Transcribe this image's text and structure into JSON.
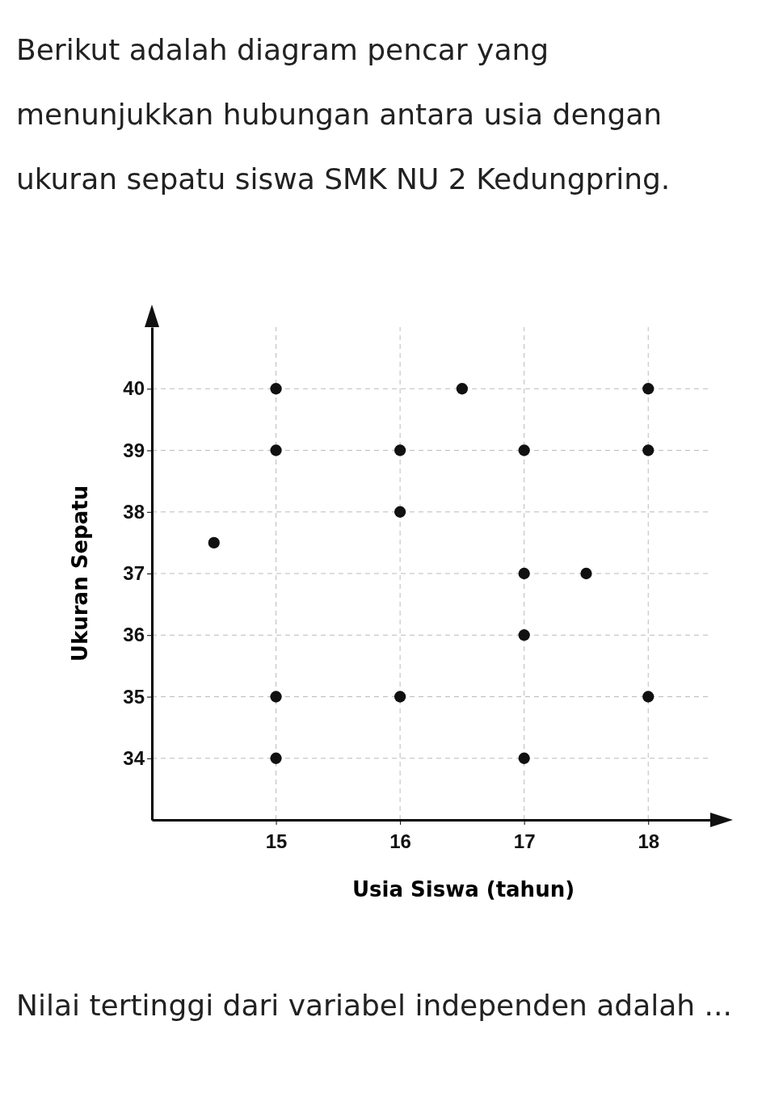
{
  "chart_data": {
    "type": "scatter",
    "title": "Berikut adalah diagram pencar yang menunjukkan hubungan antara usia dengan ukuran sepatu siswa SMK NU 2 Kedungpring.",
    "annotations": [
      "Nilai tertinggi dari variabel independen adalah ..."
    ],
    "xlabel": "Usia Siswa (tahun)",
    "ylabel": "Ukuran Sepatu",
    "series": [
      {
        "color": "#111111",
        "x": [
          14.5,
          15,
          15,
          15,
          15,
          16,
          16,
          16,
          16.5,
          17,
          17,
          17,
          17,
          17.5,
          18,
          18,
          18
        ],
        "values": [
          37.5,
          40,
          39,
          35,
          34,
          39,
          38,
          35,
          40,
          39,
          37,
          36,
          34,
          37,
          40,
          39,
          35
        ]
      }
    ],
    "xlim": [
      14,
      18.5
    ],
    "ylim": [
      33,
      41
    ],
    "xticks": [
      15,
      16,
      17,
      18
    ],
    "yticks": [
      34,
      35,
      36,
      37,
      38,
      39,
      40
    ],
    "grid": true,
    "marker": "circle"
  }
}
